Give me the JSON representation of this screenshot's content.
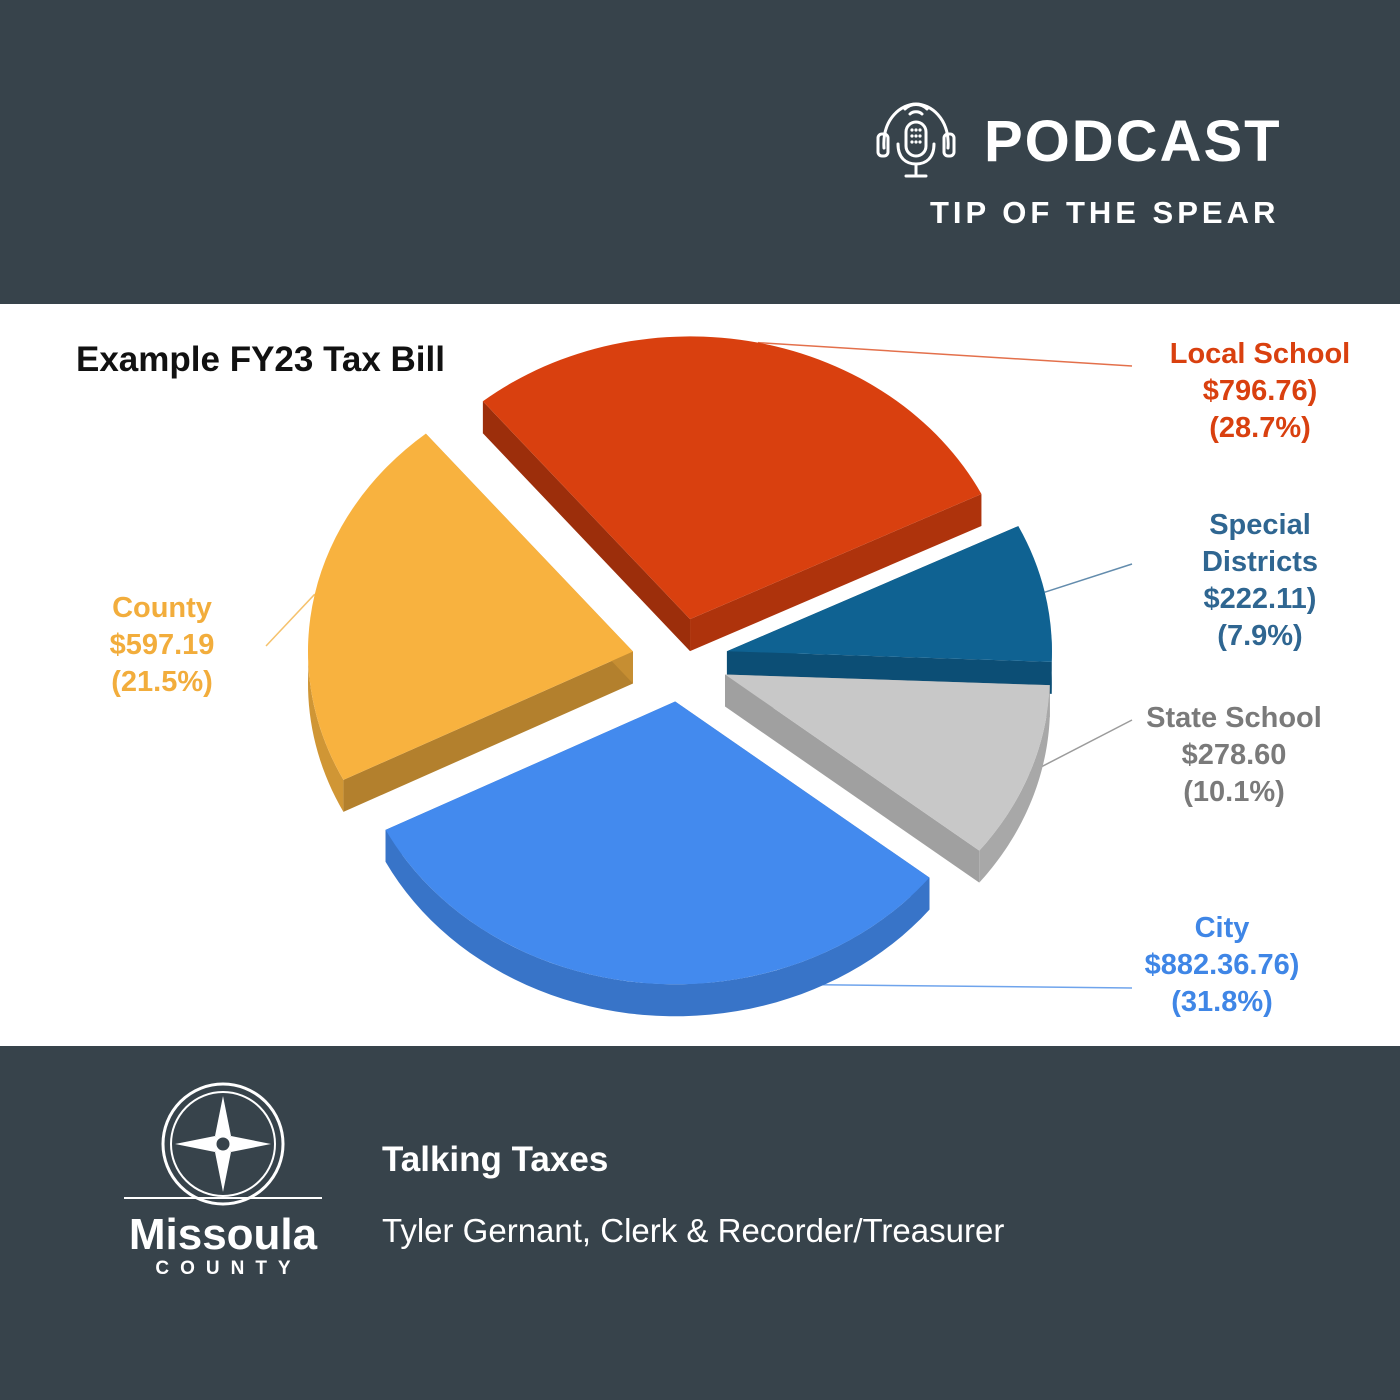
{
  "header": {
    "podcast_label": "PODCAST",
    "show_name": "TIP OF THE SPEAR"
  },
  "icons": {
    "podcast": "podcast-microphone-headphones-icon",
    "logo": "missoula-county-compass-seal"
  },
  "chart_data": {
    "type": "pie",
    "style": "3d-exploded",
    "title": "Example FY23 Tax Bill",
    "legend": "none",
    "slices": [
      {
        "label": "Local School",
        "amount": "$796.76)",
        "percent_text": "(28.7%)",
        "value": 28.7,
        "color": "#d9400f"
      },
      {
        "label": "Special Districts",
        "label_lines": [
          "Special",
          "Districts"
        ],
        "amount": "$222.11)",
        "percent_text": "(7.9%)",
        "value": 7.9,
        "color": "#0f6292"
      },
      {
        "label": "State School",
        "amount": "$278.60",
        "percent_text": "(10.1%)",
        "value": 10.1,
        "color": "#c8c8c8"
      },
      {
        "label": "City",
        "amount": "$882.36.76)",
        "percent_text": "(31.8%)",
        "value": 31.8,
        "color": "#438aee"
      },
      {
        "label": "County",
        "amount": "$597.19",
        "percent_text": "(21.5%)",
        "value": 21.5,
        "color": "#f8b23f"
      }
    ],
    "label_colors": {
      "local_school": "#d9400f",
      "special_districts": "#2f6691",
      "state_school": "#7a7a7a",
      "city": "#3f86e6",
      "county": "#f2ad3c"
    }
  },
  "footer": {
    "logo_word": "Missoula",
    "logo_sub": "COUNTY",
    "episode_title": "Talking Taxes",
    "guest": "Tyler Gernant, Clerk & Recorder/Treasurer"
  }
}
